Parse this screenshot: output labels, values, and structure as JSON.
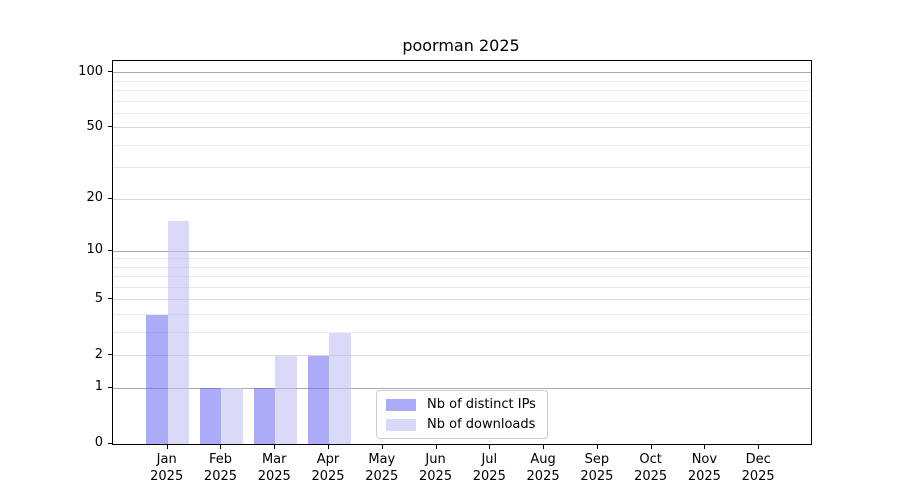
{
  "title": "poorman 2025",
  "colors": {
    "background": "#ffffff",
    "spine": "#000000",
    "grid_major": "#ababab",
    "grid_mid": "#d9d9d9",
    "grid_minor": "#e9e9e9",
    "legend_border": "#cccccc",
    "text": "#000000"
  },
  "chart_data": {
    "type": "bar",
    "title": "poorman 2025",
    "xlabel": "",
    "ylabel": "",
    "scale": "log1p",
    "ylim": [
      0,
      116
    ],
    "yticks": [
      0,
      1,
      2,
      5,
      10,
      20,
      50,
      100
    ],
    "grid": {
      "major": [
        1,
        10,
        100
      ],
      "mid": [
        2,
        5,
        20,
        50
      ],
      "minor": [
        3,
        4,
        6,
        7,
        8,
        9,
        30,
        40,
        60,
        70,
        80,
        90
      ]
    },
    "x_labels": [
      {
        "month": "Jan",
        "year": "2025"
      },
      {
        "month": "Feb",
        "year": "2025"
      },
      {
        "month": "Mar",
        "year": "2025"
      },
      {
        "month": "Apr",
        "year": "2025"
      },
      {
        "month": "May",
        "year": "2025"
      },
      {
        "month": "Jun",
        "year": "2025"
      },
      {
        "month": "Jul",
        "year": "2025"
      },
      {
        "month": "Aug",
        "year": "2025"
      },
      {
        "month": "Sep",
        "year": "2025"
      },
      {
        "month": "Oct",
        "year": "2025"
      },
      {
        "month": "Nov",
        "year": "2025"
      },
      {
        "month": "Dec",
        "year": "2025"
      }
    ],
    "series": [
      {
        "name": "Nb of distinct IPs",
        "color": "#ababf7",
        "fill": "rgba(102,102,240,0.55)",
        "values": [
          4,
          1,
          1,
          2,
          0,
          0,
          0,
          0,
          0,
          0,
          0,
          0
        ]
      },
      {
        "name": "Nb of downloads",
        "color": "#d8d8f7",
        "fill": "rgba(185,185,242,0.55)",
        "values": [
          15,
          1,
          2,
          3,
          0,
          0,
          0,
          0,
          0,
          0,
          0,
          0
        ]
      }
    ],
    "legend_position": "lower center"
  }
}
